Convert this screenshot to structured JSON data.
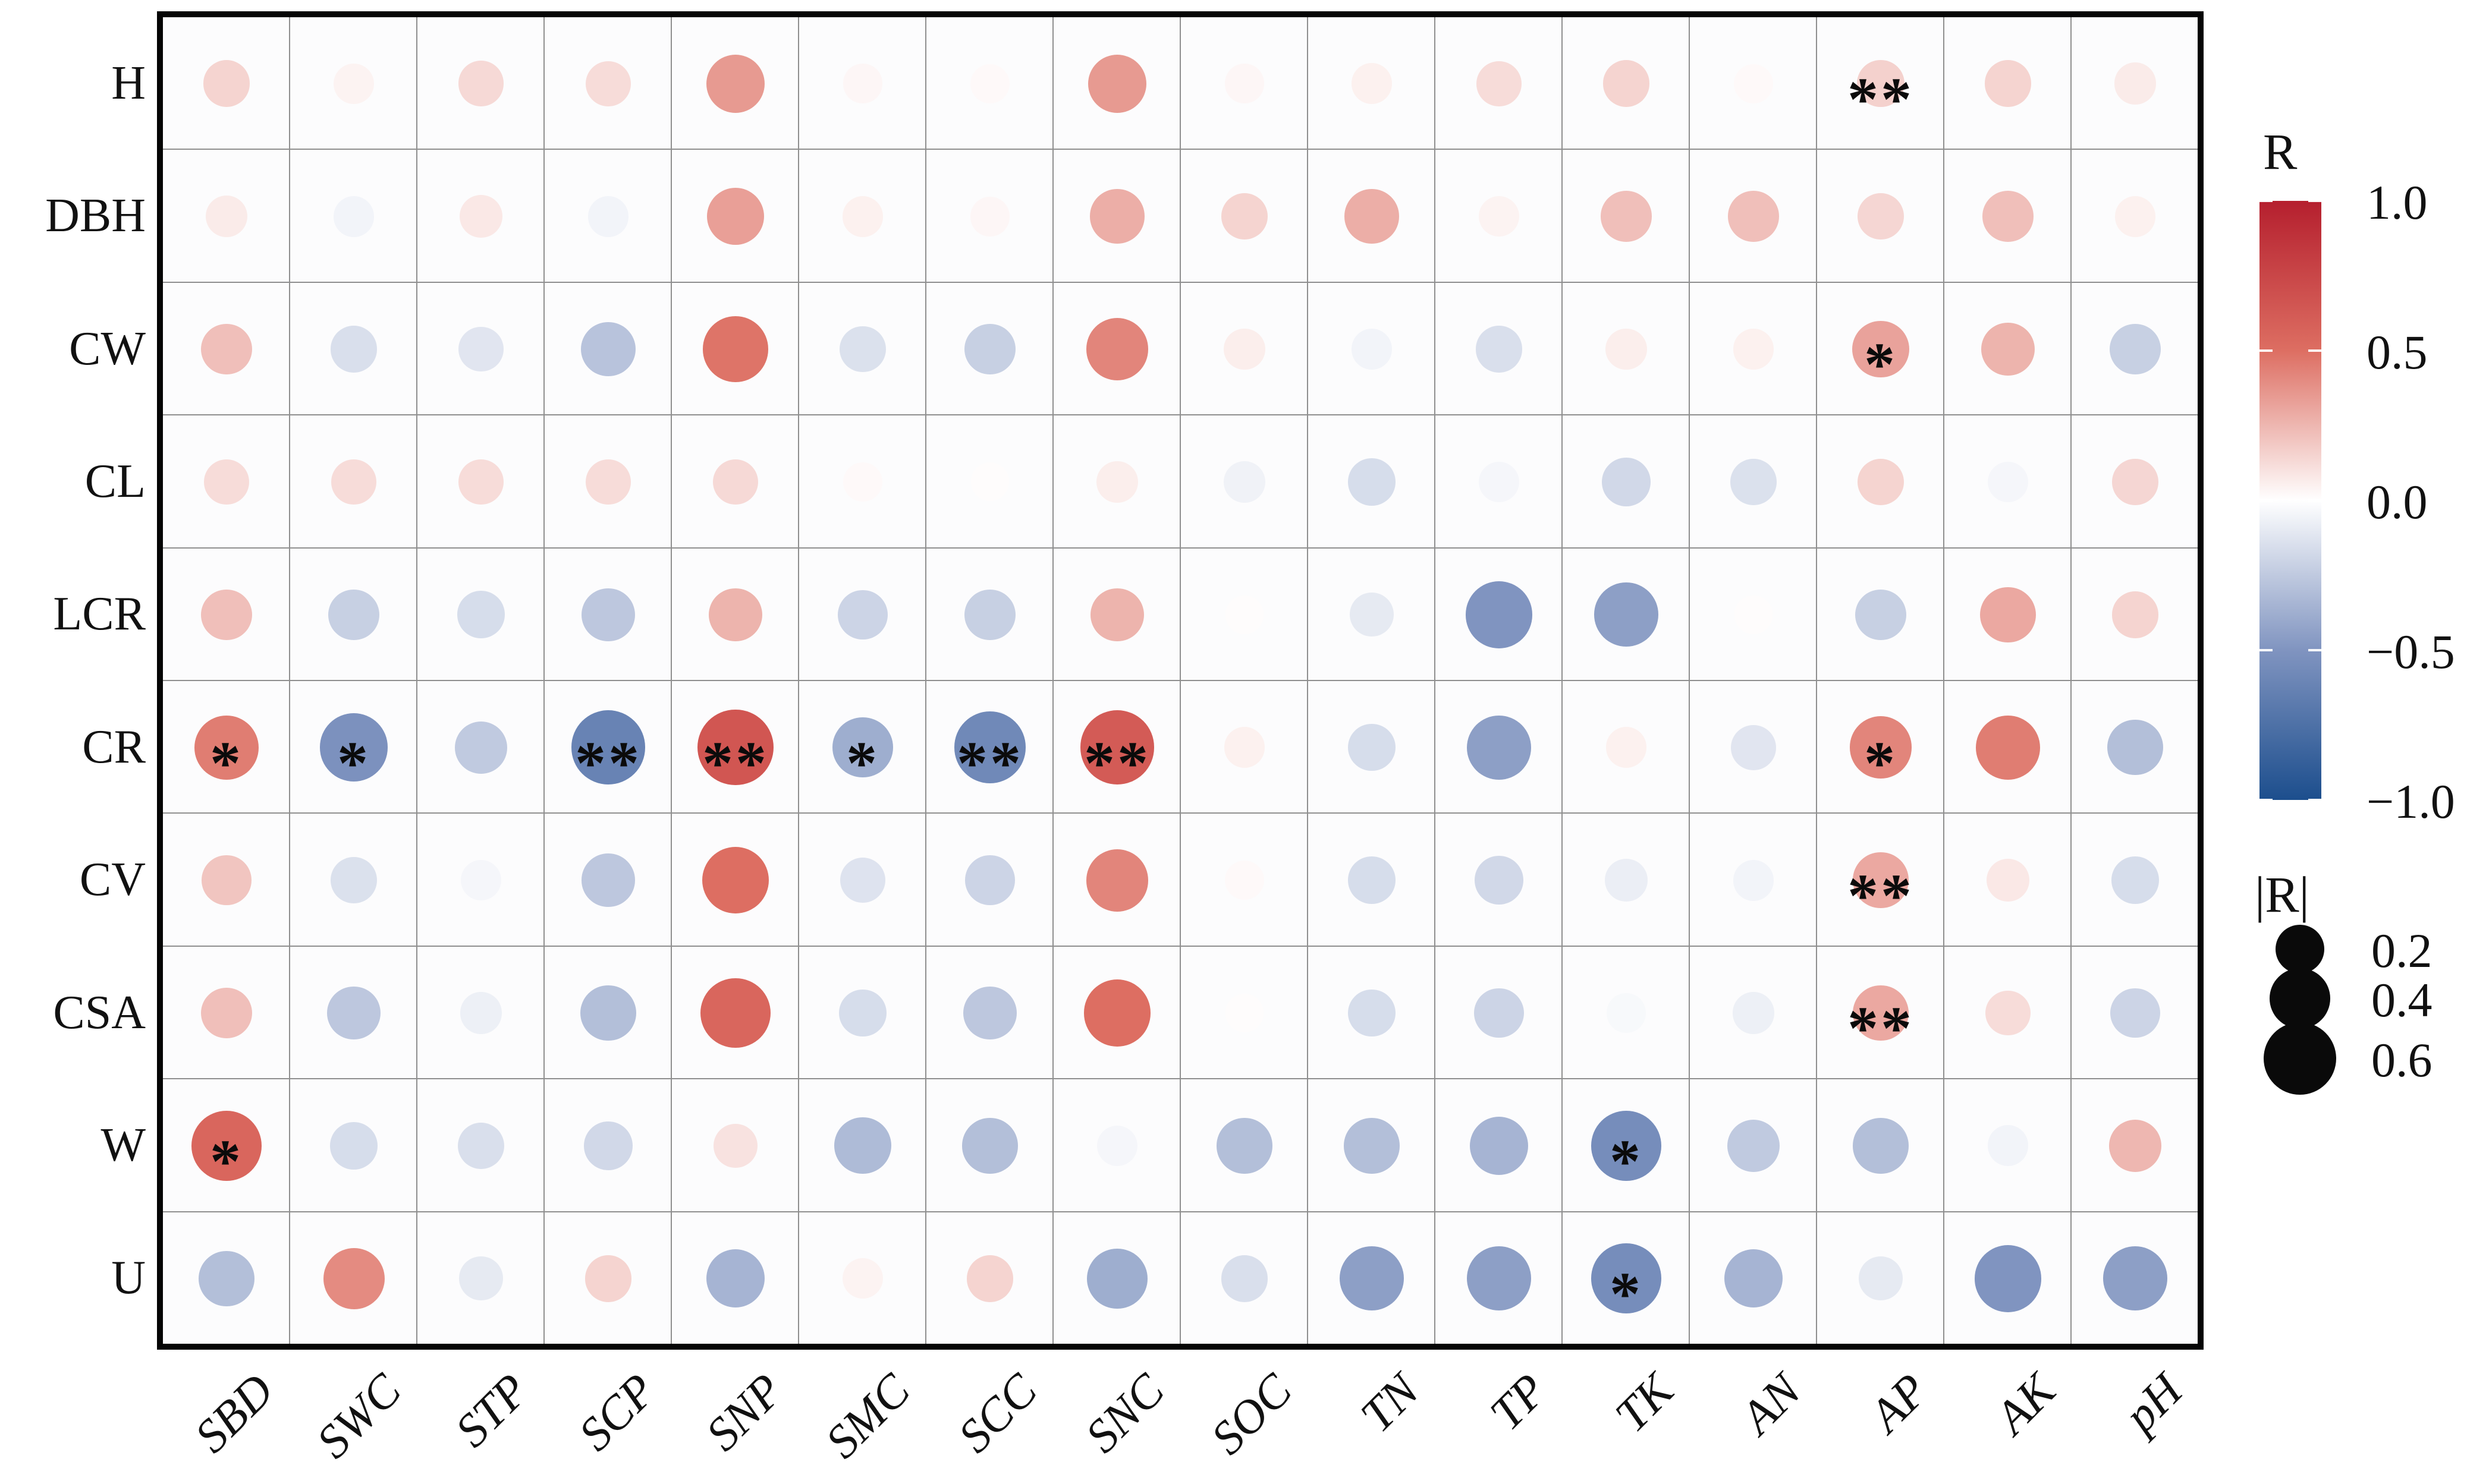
{
  "chart_data": {
    "type": "heatmap",
    "subtype": "correlation-bubble-matrix",
    "rows": [
      "H",
      "DBH",
      "CW",
      "CL",
      "LCR",
      "CR",
      "CV",
      "CSA",
      "W",
      "U"
    ],
    "columns": [
      "SBD",
      "SWC",
      "STP",
      "SCP",
      "SNP",
      "SMC",
      "SCC",
      "SNC",
      "SOC",
      "TN",
      "TP",
      "TK",
      "AN",
      "AP",
      "AK",
      "pH"
    ],
    "r_values": [
      [
        0.15,
        0.04,
        0.13,
        0.12,
        0.35,
        0.03,
        0.02,
        0.35,
        0.03,
        0.05,
        0.12,
        0.15,
        0.02,
        0.16,
        0.15,
        0.07
      ],
      [
        0.07,
        -0.05,
        0.08,
        -0.05,
        0.33,
        0.05,
        0.03,
        0.28,
        0.15,
        0.28,
        0.04,
        0.22,
        0.22,
        0.14,
        0.22,
        0.05
      ],
      [
        0.22,
        -0.15,
        -0.12,
        -0.28,
        0.48,
        -0.14,
        -0.22,
        0.42,
        0.06,
        -0.05,
        -0.15,
        0.06,
        0.05,
        0.32,
        0.26,
        -0.22
      ],
      [
        0.12,
        0.12,
        0.12,
        0.12,
        0.13,
        0.02,
        0.01,
        0.06,
        -0.06,
        -0.16,
        -0.04,
        -0.18,
        -0.14,
        0.15,
        -0.04,
        0.14
      ],
      [
        0.22,
        -0.22,
        -0.16,
        -0.26,
        0.26,
        -0.2,
        -0.22,
        0.26,
        0.01,
        -0.1,
        -0.5,
        -0.45,
        0.01,
        -0.22,
        0.3,
        0.15
      ],
      [
        0.45,
        -0.52,
        -0.25,
        -0.62,
        0.65,
        -0.38,
        -0.58,
        0.62,
        0.05,
        -0.16,
        -0.45,
        0.05,
        -0.12,
        0.42,
        0.45,
        -0.3
      ],
      [
        0.2,
        -0.14,
        -0.04,
        -0.26,
        0.5,
        -0.13,
        -0.2,
        0.42,
        0.02,
        -0.16,
        -0.18,
        -0.08,
        -0.05,
        0.3,
        0.08,
        -0.16
      ],
      [
        0.22,
        -0.26,
        -0.07,
        -0.3,
        0.55,
        -0.16,
        -0.26,
        0.5,
        0.01,
        -0.16,
        -0.2,
        -0.03,
        -0.07,
        0.3,
        0.12,
        -0.2
      ],
      [
        0.55,
        -0.16,
        -0.15,
        -0.18,
        0.1,
        -0.32,
        -0.3,
        -0.04,
        -0.3,
        -0.3,
        -0.35,
        -0.55,
        -0.25,
        -0.3,
        -0.05,
        0.25
      ],
      [
        -0.3,
        0.4,
        -0.1,
        0.15,
        -0.35,
        0.04,
        0.15,
        -0.38,
        -0.15,
        -0.45,
        -0.45,
        -0.55,
        -0.35,
        -0.1,
        -0.5,
        -0.45
      ]
    ],
    "significance": [
      [
        "",
        "",
        "",
        "",
        "",
        "",
        "",
        "",
        "",
        "",
        "",
        "",
        "",
        "**",
        "",
        ""
      ],
      [
        "",
        "",
        "",
        "",
        "",
        "",
        "",
        "",
        "",
        "",
        "",
        "",
        "",
        "",
        "",
        ""
      ],
      [
        "",
        "",
        "",
        "",
        "",
        "",
        "",
        "",
        "",
        "",
        "",
        "",
        "",
        "*",
        "",
        ""
      ],
      [
        "",
        "",
        "",
        "",
        "",
        "",
        "",
        "",
        "",
        "",
        "",
        "",
        "",
        "",
        "",
        ""
      ],
      [
        "",
        "",
        "",
        "",
        "",
        "",
        "",
        "",
        "",
        "",
        "",
        "",
        "",
        "",
        "",
        ""
      ],
      [
        "*",
        "*",
        "",
        "**",
        "**",
        "*",
        "**",
        "**",
        "",
        "",
        "",
        "",
        "",
        "*",
        "",
        ""
      ],
      [
        "",
        "",
        "",
        "",
        "",
        "",
        "",
        "",
        "",
        "",
        "",
        "",
        "",
        "**",
        "",
        ""
      ],
      [
        "",
        "",
        "",
        "",
        "",
        "",
        "",
        "",
        "",
        "",
        "",
        "",
        "",
        "**",
        "",
        ""
      ],
      [
        "*",
        "",
        "",
        "",
        "",
        "",
        "",
        "",
        "",
        "",
        "",
        "*",
        "",
        "",
        "",
        ""
      ],
      [
        "",
        "",
        "",
        "",
        "",
        "",
        "",
        "",
        "",
        "",
        "",
        "*",
        "",
        "",
        "",
        ""
      ]
    ],
    "color_legend": {
      "title": "R",
      "ticks": [
        "1.0",
        "0.5",
        "0.0",
        "−0.5",
        "−1.0"
      ],
      "tick_values": [
        1.0,
        0.5,
        0.0,
        -0.5,
        -1.0
      ],
      "max_color": "#b51f2e",
      "mid_pos_color": "#dd6e62",
      "zero_color": "#ffffff",
      "mid_neg_color": "#8094c0",
      "min_color": "#1c4e8d"
    },
    "size_legend": {
      "title": "|R|",
      "entries": [
        "0.2",
        "0.4",
        "0.6"
      ],
      "entry_values": [
        0.2,
        0.4,
        0.6
      ]
    },
    "grid": true,
    "axis_ranges": {
      "r_min": -1.0,
      "r_max": 1.0
    },
    "legend_position": "right"
  }
}
